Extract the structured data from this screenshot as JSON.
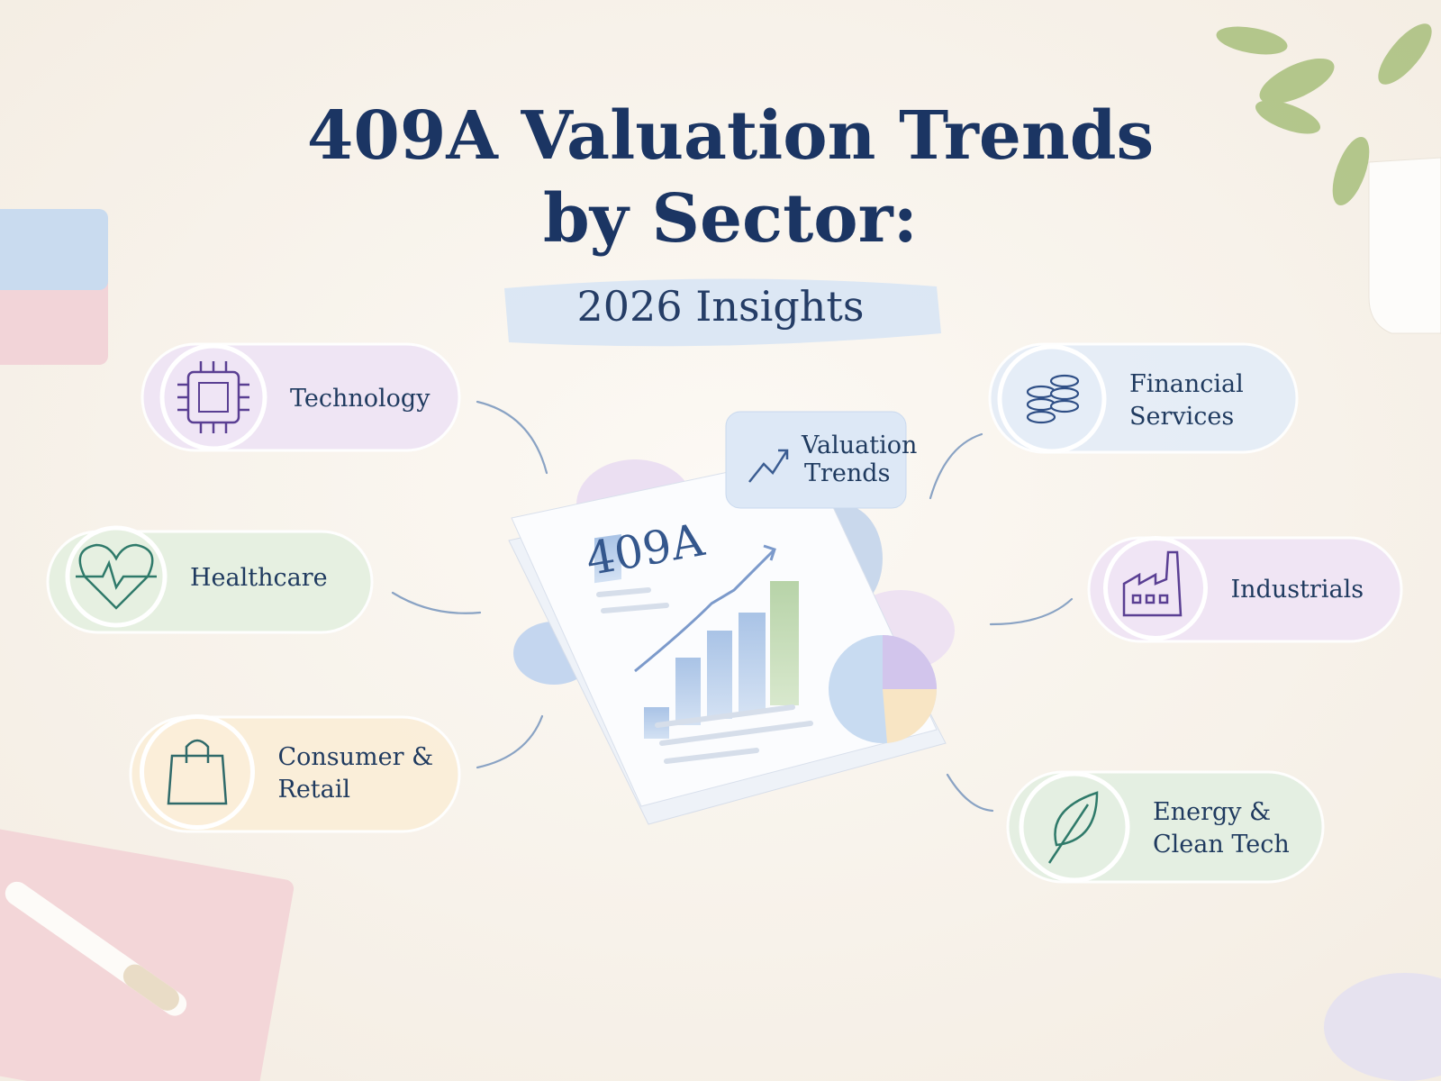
{
  "header": {
    "title_lines": [
      "409A Valuation Trends",
      "by Sector:"
    ],
    "subtitle": "2026 Insights"
  },
  "center": {
    "document_label": "409A",
    "badge_lines": [
      "Valuation",
      "Trends"
    ]
  },
  "sectors": [
    {
      "label_lines": [
        "Technology"
      ]
    },
    {
      "label_lines": [
        "Healthcare"
      ]
    },
    {
      "label_lines": [
        "Consumer &",
        "Retail"
      ]
    },
    {
      "label_lines": [
        "Financial",
        "Services"
      ]
    },
    {
      "label_lines": [
        "Industrials"
      ]
    },
    {
      "label_lines": [
        "Energy &",
        "Clean Tech"
      ]
    }
  ]
}
